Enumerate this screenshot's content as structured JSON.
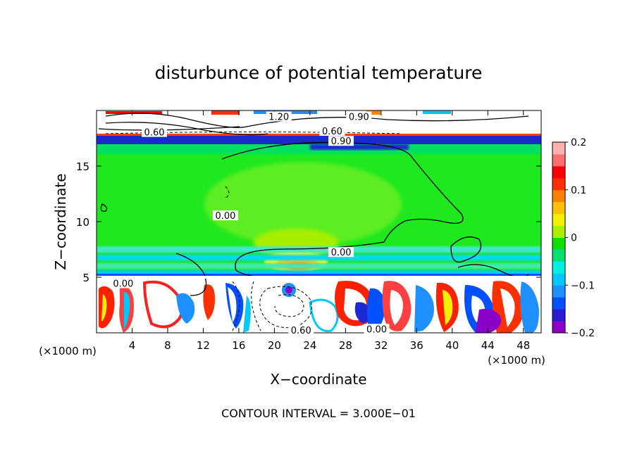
{
  "chart_data": {
    "type": "heatmap",
    "title": "disturbunce of potential temperature",
    "xlabel": "X−coordinate",
    "ylabel": "Z−coordinate",
    "x_unit_left": "(×1000 m)",
    "x_unit_right": "(×1000 m)",
    "footer": "CONTOUR INTERVAL = 3.000E−01",
    "xlim": [
      0,
      50
    ],
    "ylim": [
      0,
      20
    ],
    "x_ticks": [
      4,
      8,
      12,
      16,
      20,
      24,
      28,
      32,
      36,
      40,
      44,
      48
    ],
    "y_ticks": [
      5,
      10,
      15
    ],
    "colorbar": {
      "min": -0.2,
      "max": 0.2,
      "ticks": [
        0.2,
        0.1,
        0,
        -0.1,
        -0.2
      ],
      "tick_labels": [
        "0.2",
        "0.1",
        "0",
        "−0.1",
        "−0.2"
      ],
      "colors": [
        "#8b00c8",
        "#2a1ad0",
        "#0050ff",
        "#1e90ff",
        "#00c8ff",
        "#00f0e0",
        "#00e070",
        "#10e000",
        "#aaee00",
        "#f0f000",
        "#ffc000",
        "#ff8000",
        "#ff3000",
        "#ff0000",
        "#ff6f6f",
        "#ffb0b0"
      ]
    },
    "contour_labels": [
      {
        "text": "1.20",
        "x": 20.5,
        "z": 19.4
      },
      {
        "text": "0.60",
        "x": 26.5,
        "z": 18.1
      },
      {
        "text": "0.90",
        "x": 29.5,
        "z": 19.4
      },
      {
        "text": "0.90",
        "x": 27.5,
        "z": 17.2
      },
      {
        "text": "0.60",
        "x": 6.5,
        "z": 18.0
      },
      {
        "text": "0.00",
        "x": 27.5,
        "z": 7.2
      },
      {
        "text": "0.00",
        "x": 3.0,
        "z": 4.4
      },
      {
        "text": "0.60",
        "x": 23.0,
        "z": 0.2
      },
      {
        "text": "0.00",
        "x": 31.5,
        "z": 0.3
      },
      {
        "text": "0.00",
        "x": 14.5,
        "z": 10.5
      }
    ]
  }
}
